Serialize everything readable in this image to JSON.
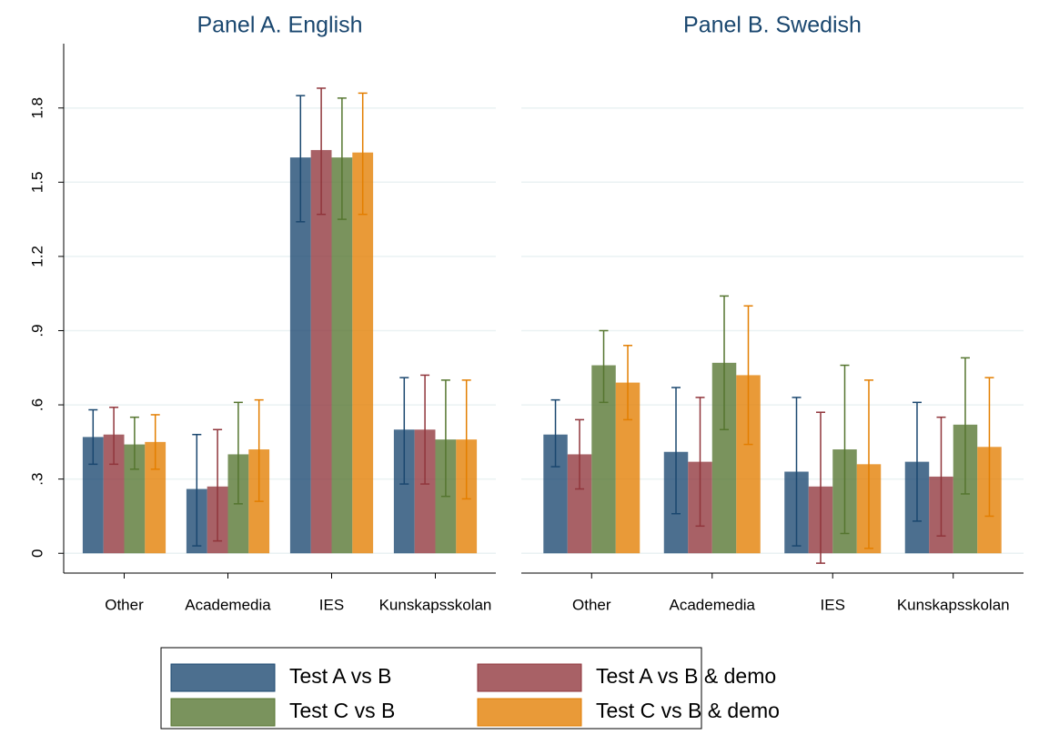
{
  "chart_data": {
    "type": "bar",
    "ylim": [
      -0.08,
      2.06
    ],
    "yticks": [
      0,
      {
        "value": 0.3,
        "label": ".3"
      },
      {
        "value": 0.6,
        "label": ".6"
      },
      {
        "value": 0.9,
        "label": ".9"
      },
      1.2,
      1.5,
      1.8
    ],
    "grid": true,
    "legend": "bottom",
    "series": [
      {
        "name": "Test A vs B",
        "color": "#1a476f"
      },
      {
        "name": "Test A vs B & demo",
        "color": "#90353b"
      },
      {
        "name": "Test C vs B",
        "color": "#55752f"
      },
      {
        "name": "Test C vs B & demo",
        "color": "#e37e00"
      }
    ],
    "panels": [
      {
        "title": "Panel A. English",
        "categories": [
          "Other",
          "Academedia",
          "IES",
          "Kunskapsskolan"
        ],
        "series": [
          {
            "values": [
              0.47,
              0.26,
              1.6,
              0.5
            ],
            "lower": [
              0.36,
              0.03,
              1.34,
              0.28
            ],
            "upper": [
              0.58,
              0.48,
              1.85,
              0.71
            ]
          },
          {
            "values": [
              0.48,
              0.27,
              1.63,
              0.5
            ],
            "lower": [
              0.36,
              0.05,
              1.37,
              0.28
            ],
            "upper": [
              0.59,
              0.5,
              1.88,
              0.72
            ]
          },
          {
            "values": [
              0.44,
              0.4,
              1.6,
              0.46
            ],
            "lower": [
              0.34,
              0.2,
              1.35,
              0.23
            ],
            "upper": [
              0.55,
              0.61,
              1.84,
              0.7
            ]
          },
          {
            "values": [
              0.45,
              0.42,
              1.62,
              0.46
            ],
            "lower": [
              0.34,
              0.21,
              1.37,
              0.22
            ],
            "upper": [
              0.56,
              0.62,
              1.86,
              0.7
            ]
          }
        ]
      },
      {
        "title": "Panel B. Swedish",
        "categories": [
          "Other",
          "Academedia",
          "IES",
          "Kunskapsskolan"
        ],
        "series": [
          {
            "values": [
              0.48,
              0.41,
              0.33,
              0.37
            ],
            "lower": [
              0.35,
              0.16,
              0.03,
              0.13
            ],
            "upper": [
              0.62,
              0.67,
              0.63,
              0.61
            ]
          },
          {
            "values": [
              0.4,
              0.37,
              0.27,
              0.31
            ],
            "lower": [
              0.26,
              0.11,
              -0.04,
              0.07
            ],
            "upper": [
              0.54,
              0.63,
              0.57,
              0.55
            ]
          },
          {
            "values": [
              0.76,
              0.77,
              0.42,
              0.52
            ],
            "lower": [
              0.61,
              0.5,
              0.08,
              0.24
            ],
            "upper": [
              0.9,
              1.04,
              0.76,
              0.79
            ]
          },
          {
            "values": [
              0.69,
              0.72,
              0.36,
              0.43
            ],
            "lower": [
              0.54,
              0.44,
              0.02,
              0.15
            ],
            "upper": [
              0.84,
              1.0,
              0.7,
              0.71
            ]
          }
        ]
      }
    ]
  }
}
